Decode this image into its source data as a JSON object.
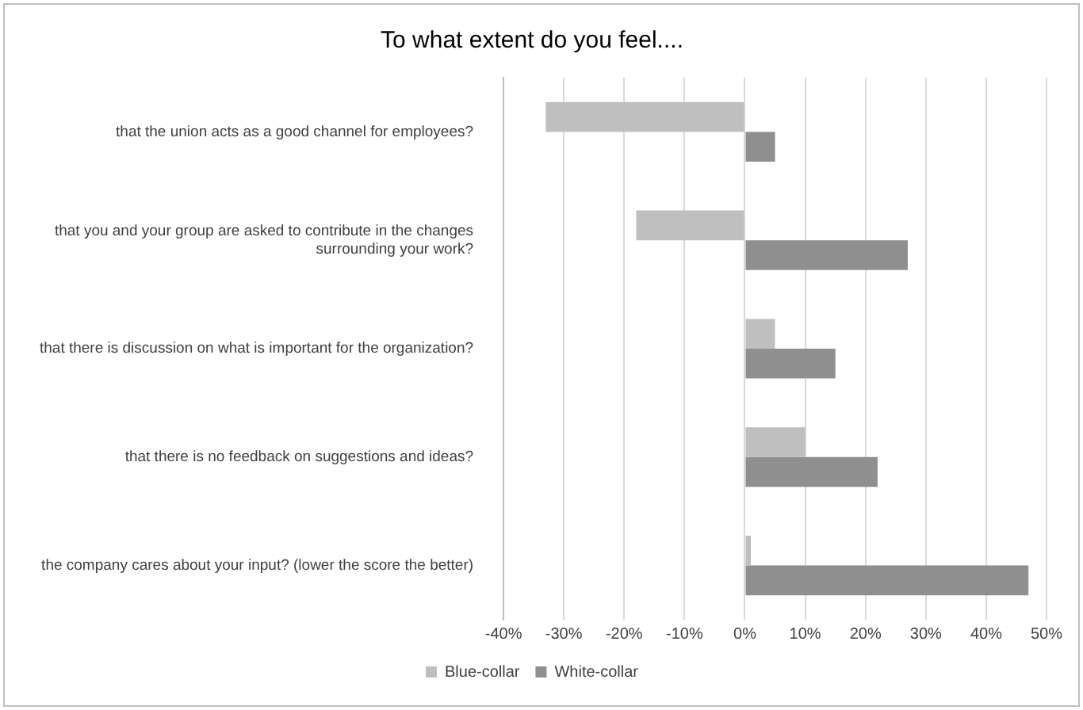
{
  "chart_data": {
    "type": "bar",
    "orientation": "horizontal",
    "title": "To what extent do you feel....",
    "categories": [
      "that the union acts as a good channel for employees?",
      "that you and your group are asked to contribute in the changes surrounding your work?",
      "that there is discussion on what is important for the organization?",
      "that there is no feedback on suggestions and ideas?",
      "the company cares about your input? (lower the score the better)"
    ],
    "series": [
      {
        "name": "Blue-collar",
        "color": "#bfbfbf",
        "values": [
          -33,
          -18,
          5,
          10,
          1
        ]
      },
      {
        "name": "White-collar",
        "color": "#8f8f8f",
        "values": [
          5,
          27,
          15,
          22,
          47
        ]
      }
    ],
    "xlim": [
      -40,
      50
    ],
    "xticks": [
      {
        "value": -40,
        "label": "-40%"
      },
      {
        "value": -30,
        "label": "-30%"
      },
      {
        "value": -20,
        "label": "-20%"
      },
      {
        "value": -10,
        "label": "-10%"
      },
      {
        "value": 0,
        "label": "0%"
      },
      {
        "value": 10,
        "label": "10%"
      },
      {
        "value": 20,
        "label": "20%"
      },
      {
        "value": 30,
        "label": "30%"
      },
      {
        "value": 40,
        "label": "40%"
      },
      {
        "value": 50,
        "label": "50%"
      }
    ],
    "grid": "x",
    "legend": "bottom"
  }
}
